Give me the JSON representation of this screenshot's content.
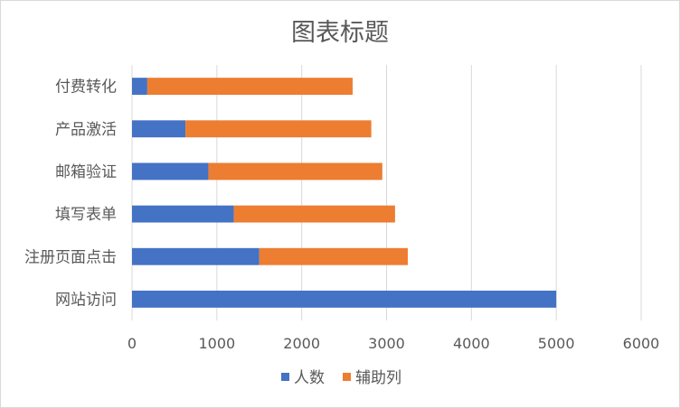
{
  "chart_data": {
    "type": "bar",
    "orientation": "horizontal",
    "stacked": true,
    "title": "图表标题",
    "categories": [
      "网站访问",
      "注册页面点击",
      "填写表单",
      "邮箱验证",
      "产品激活",
      "付费转化"
    ],
    "series": [
      {
        "name": "人数",
        "color": "#4472c4",
        "values": [
          5000,
          1500,
          1200,
          900,
          630,
          180
        ]
      },
      {
        "name": "辅助列",
        "color": "#ed7d31",
        "values": [
          0,
          1750,
          1900,
          2050,
          2190,
          2420
        ]
      }
    ],
    "xlim": [
      0,
      6000
    ],
    "xticks": [
      "0",
      "1000",
      "2000",
      "3000",
      "4000",
      "5000",
      "6000"
    ],
    "grid": true,
    "legend": "bottom"
  }
}
